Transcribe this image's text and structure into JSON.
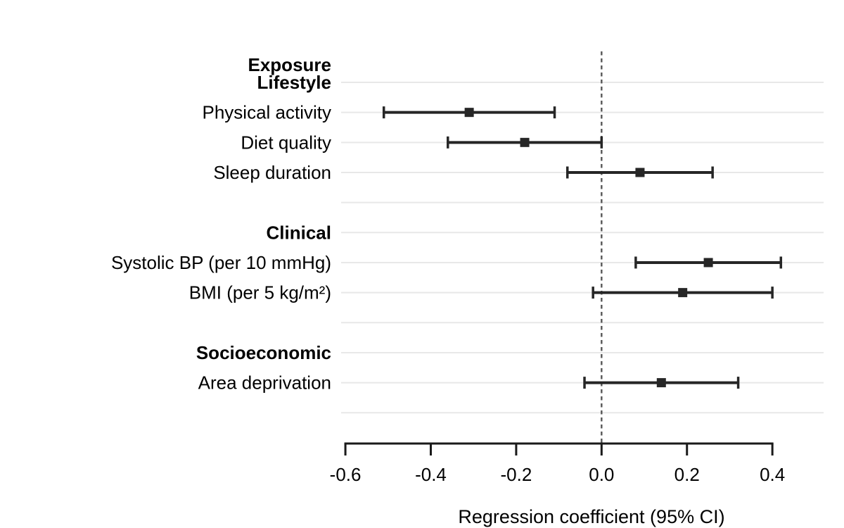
{
  "chart_data": {
    "type": "forest",
    "title": "",
    "xlabel": "Regression coefficient (95% CI)",
    "header_label": "Exposure",
    "xlim": [
      -0.61,
      0.52
    ],
    "zero_line": 0.0,
    "grid": true,
    "x_ticks": [
      -0.6,
      -0.4,
      -0.2,
      0.0,
      0.2,
      0.4
    ],
    "x_tick_labels": [
      "-0.6",
      "-0.4",
      "-0.2",
      "0.0",
      "0.2",
      "0.4"
    ],
    "rows": [
      {
        "type": "group",
        "id": "lifestyle",
        "label": "Lifestyle"
      },
      {
        "type": "item",
        "id": "physical-activity",
        "label": "Physical activity",
        "estimate": -0.31,
        "ci_low": -0.51,
        "ci_high": -0.11
      },
      {
        "type": "item",
        "id": "diet-quality",
        "label": "Diet quality",
        "estimate": -0.18,
        "ci_low": -0.36,
        "ci_high": 0.0
      },
      {
        "type": "item",
        "id": "sleep-duration",
        "label": "Sleep duration",
        "estimate": 0.09,
        "ci_low": -0.08,
        "ci_high": 0.26
      },
      {
        "type": "spacer",
        "id": "spacer-1",
        "label": ""
      },
      {
        "type": "group",
        "id": "clinical",
        "label": "Clinical"
      },
      {
        "type": "item",
        "id": "systolic-bp",
        "label": "Systolic BP (per 10 mmHg)",
        "estimate": 0.25,
        "ci_low": 0.08,
        "ci_high": 0.42
      },
      {
        "type": "item",
        "id": "bmi",
        "label": "BMI (per 5 kg/m²)",
        "estimate": 0.19,
        "ci_low": -0.02,
        "ci_high": 0.4
      },
      {
        "type": "spacer",
        "id": "spacer-2",
        "label": ""
      },
      {
        "type": "group",
        "id": "socioeconomic",
        "label": "Socioeconomic"
      },
      {
        "type": "item",
        "id": "area-deprivation",
        "label": "Area deprivation",
        "estimate": 0.14,
        "ci_low": -0.04,
        "ci_high": 0.32
      },
      {
        "type": "spacer",
        "id": "spacer-3",
        "label": ""
      }
    ],
    "colors": {
      "marker": "#262626",
      "ci_line": "#262626",
      "zero_line": "#575757",
      "gridline": "#e8e8e8",
      "axis": "#1a1a1a",
      "text": "#000000"
    }
  }
}
